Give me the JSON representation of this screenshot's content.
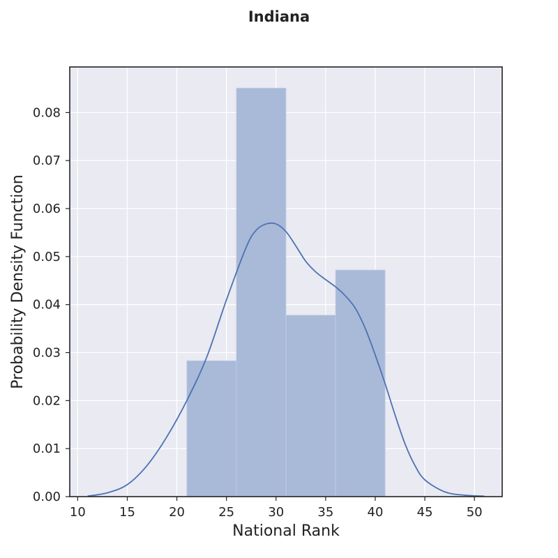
{
  "chart_data": {
    "type": "histogram",
    "title": "Indiana",
    "xlabel": "National Rank",
    "ylabel": "Probability Density Function",
    "xlim": [
      9.2,
      52.8
    ],
    "ylim": [
      0,
      0.0895
    ],
    "xticks": [
      10,
      15,
      20,
      25,
      30,
      35,
      40,
      45,
      50
    ],
    "yticks": [
      0,
      0.01,
      0.02,
      0.03,
      0.04,
      0.05,
      0.06,
      0.07,
      0.08
    ],
    "ytick_labels": [
      "0.00",
      "0.01",
      "0.02",
      "0.03",
      "0.04",
      "0.05",
      "0.06",
      "0.07",
      "0.08"
    ],
    "grid": true,
    "bins": [
      {
        "x0": 21.0,
        "x1": 26.0,
        "density": 0.0283
      },
      {
        "x0": 26.0,
        "x1": 31.0,
        "density": 0.0851
      },
      {
        "x0": 31.0,
        "x1": 36.0,
        "density": 0.0378
      },
      {
        "x0": 36.0,
        "x1": 41.0,
        "density": 0.0472
      }
    ],
    "kde": {
      "x": [
        11,
        13,
        15,
        17,
        19,
        21,
        23,
        25,
        27,
        28,
        29,
        30,
        31,
        32,
        33,
        34,
        35,
        36,
        37,
        38,
        39,
        40,
        41,
        42,
        43,
        44,
        45,
        47,
        49,
        51
      ],
      "y": [
        0.0001,
        0.0008,
        0.0025,
        0.0065,
        0.0125,
        0.02,
        0.029,
        0.041,
        0.052,
        0.0555,
        0.0568,
        0.0568,
        0.0552,
        0.0522,
        0.049,
        0.0468,
        0.0452,
        0.0437,
        0.0418,
        0.0392,
        0.035,
        0.0295,
        0.0235,
        0.017,
        0.011,
        0.0065,
        0.0035,
        0.001,
        0.0003,
        0.0001
      ]
    },
    "colors": {
      "plot_bg": "#e9eaf2",
      "grid": "#ffffff",
      "bar_fill": "#a9b9d8",
      "kde_line": "#4c72b0",
      "axes": "#222222"
    }
  }
}
